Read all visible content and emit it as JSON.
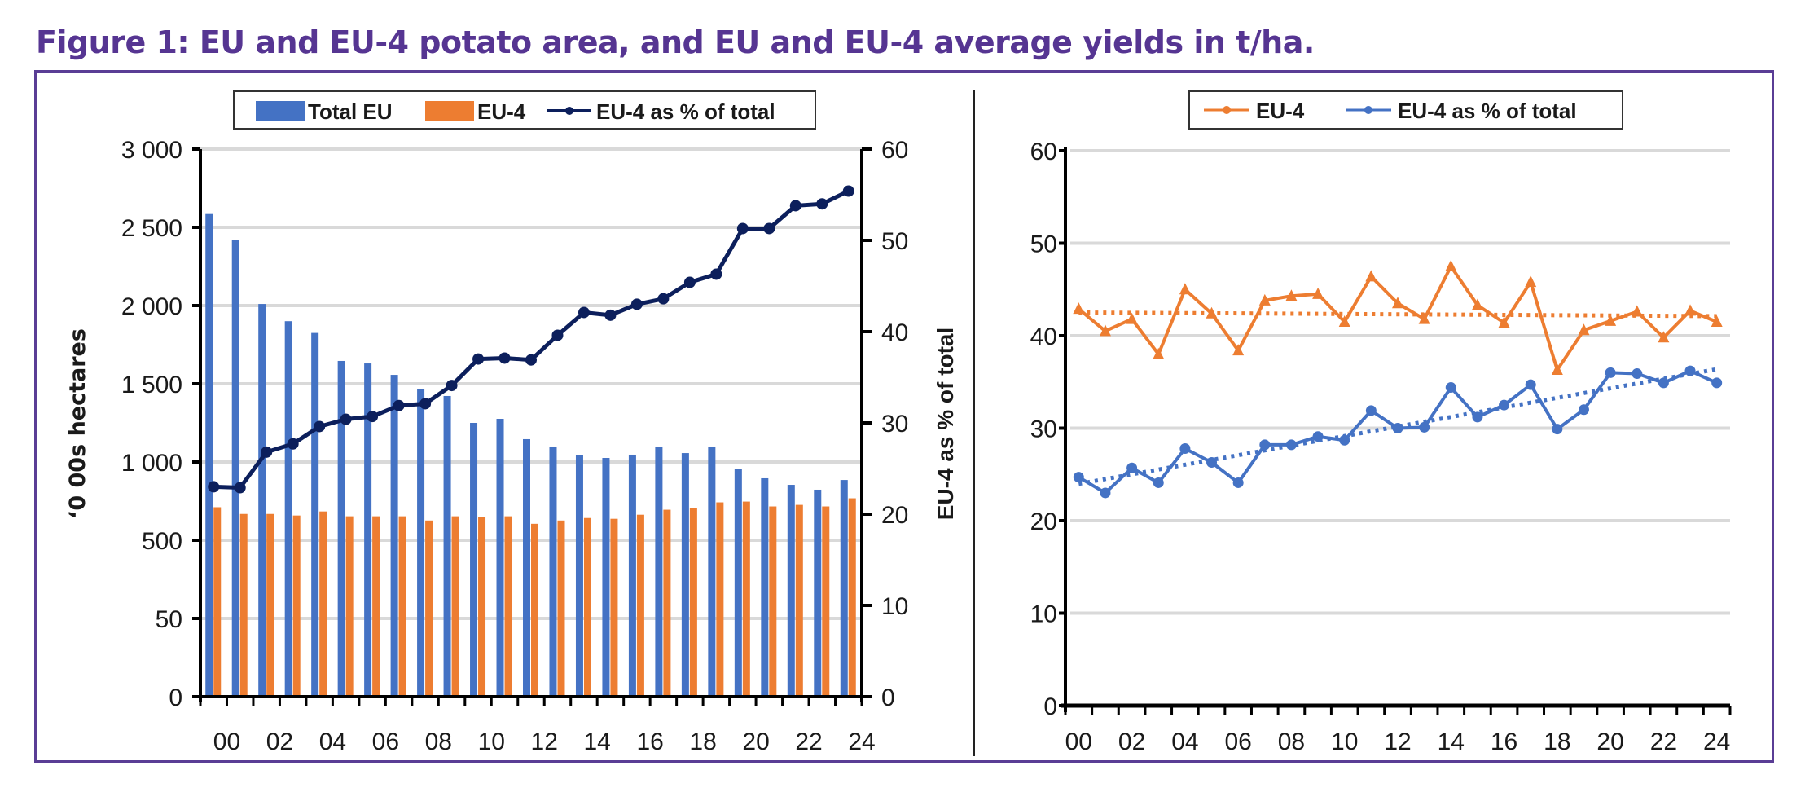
{
  "figure": {
    "title": "Figure 1: EU and EU-4 potato area, and EU and EU-4 average yields in t/ha.",
    "colors": {
      "title": "#563592",
      "frame": "#5a3d95",
      "total_eu": "#4472c4",
      "eu4": "#ed7d31",
      "pct_line": "#0c1f5c",
      "yield_blue": "#4472c4",
      "grid": "#d9d9d9"
    }
  },
  "chart_data": [
    {
      "type": "bar",
      "title": "",
      "legend": {
        "placement": "top-center",
        "entries": [
          "Total EU",
          "EU-4",
          "EU-4 as % of total"
        ]
      },
      "categories": [
        "2000",
        "2001",
        "2002",
        "2003",
        "2004",
        "2005",
        "2006",
        "2007",
        "2008",
        "2009",
        "2010",
        "2011",
        "2012",
        "2013",
        "2014",
        "2015",
        "2016",
        "2017",
        "2018",
        "2019",
        "2020",
        "2021",
        "2022",
        "2023",
        "2024"
      ],
      "xtick_labels": [
        "00",
        "02",
        "04",
        "06",
        "08",
        "10",
        "12",
        "14",
        "16",
        "18",
        "20",
        "22",
        "24"
      ],
      "xlabel": "",
      "ylabel": "‘0 00s hectares",
      "y_tick_labels": [
        "0",
        "50",
        "500",
        "1 000",
        "1 500",
        "2 000",
        "2 500",
        "3 000"
      ],
      "y2label": "EU-4 as % of total",
      "y2lim": [
        0,
        60
      ],
      "y2_tick_labels": [
        "0",
        "10",
        "20",
        "30",
        "40",
        "50",
        "60"
      ],
      "grid": true,
      "series": [
        {
          "name": "Total EU",
          "type": "bar",
          "axis": "left",
          "values": [
            2585,
            2420,
            2010,
            1900,
            1825,
            1646,
            1630,
            1557,
            1464,
            1422,
            1250,
            1276,
            1146,
            1099,
            1042,
            1026,
            1047,
            1099,
            1057,
            1099,
            958,
            896,
            854,
            823,
            885
          ]
        },
        {
          "name": "EU-4",
          "type": "bar",
          "axis": "left",
          "values": [
            711,
            668,
            668,
            658,
            684,
            653,
            653,
            653,
            626,
            653,
            647,
            653,
            605,
            626,
            642,
            637,
            663,
            695,
            705,
            742,
            747,
            716,
            726,
            716,
            768
          ]
        },
        {
          "name": "EU-4 as % of total",
          "type": "line",
          "axis": "right",
          "marker": "circle",
          "values": [
            23.0,
            22.9,
            26.8,
            27.7,
            29.6,
            30.4,
            30.7,
            31.9,
            32.1,
            34.1,
            37.0,
            37.1,
            36.9,
            39.6,
            42.1,
            41.8,
            43.0,
            43.6,
            45.4,
            46.3,
            51.3,
            51.3,
            53.8,
            54.0,
            55.4
          ]
        }
      ]
    },
    {
      "type": "line",
      "title": "",
      "legend": {
        "placement": "top-center",
        "entries": [
          "EU-4",
          "EU-4 as % of total"
        ]
      },
      "categories": [
        "2000",
        "2001",
        "2002",
        "2003",
        "2004",
        "2005",
        "2006",
        "2007",
        "2008",
        "2009",
        "2010",
        "2011",
        "2012",
        "2013",
        "2014",
        "2015",
        "2016",
        "2017",
        "2018",
        "2019",
        "2020",
        "2021",
        "2022",
        "2023",
        "2024"
      ],
      "xtick_labels": [
        "00",
        "02",
        "04",
        "06",
        "08",
        "10",
        "12",
        "14",
        "16",
        "18",
        "20",
        "22",
        "24"
      ],
      "xlabel": "",
      "ylabel": "",
      "ylim": [
        0,
        60
      ],
      "y_tick_labels": [
        "0",
        "10",
        "20",
        "30",
        "40",
        "50",
        "60"
      ],
      "grid": true,
      "series": [
        {
          "name": "EU-4",
          "marker": "triangle",
          "trendline": "linear-dotted",
          "values": [
            42.9,
            40.5,
            41.8,
            38.0,
            45.0,
            42.4,
            38.4,
            43.8,
            44.3,
            44.5,
            41.5,
            46.4,
            43.5,
            41.8,
            47.5,
            43.3,
            41.4,
            45.8,
            36.3,
            40.6,
            41.6,
            42.6,
            39.8,
            42.7,
            41.5
          ]
        },
        {
          "name": "EU-4 as % of total",
          "marker": "circle",
          "trendline": "linear-dotted",
          "values": [
            24.7,
            23.0,
            25.7,
            24.1,
            27.8,
            26.3,
            24.1,
            28.2,
            28.2,
            29.1,
            28.7,
            31.9,
            30.0,
            30.1,
            34.4,
            31.2,
            32.5,
            34.7,
            29.9,
            32.0,
            36.0,
            35.9,
            34.9,
            36.2,
            34.9
          ]
        }
      ]
    }
  ]
}
